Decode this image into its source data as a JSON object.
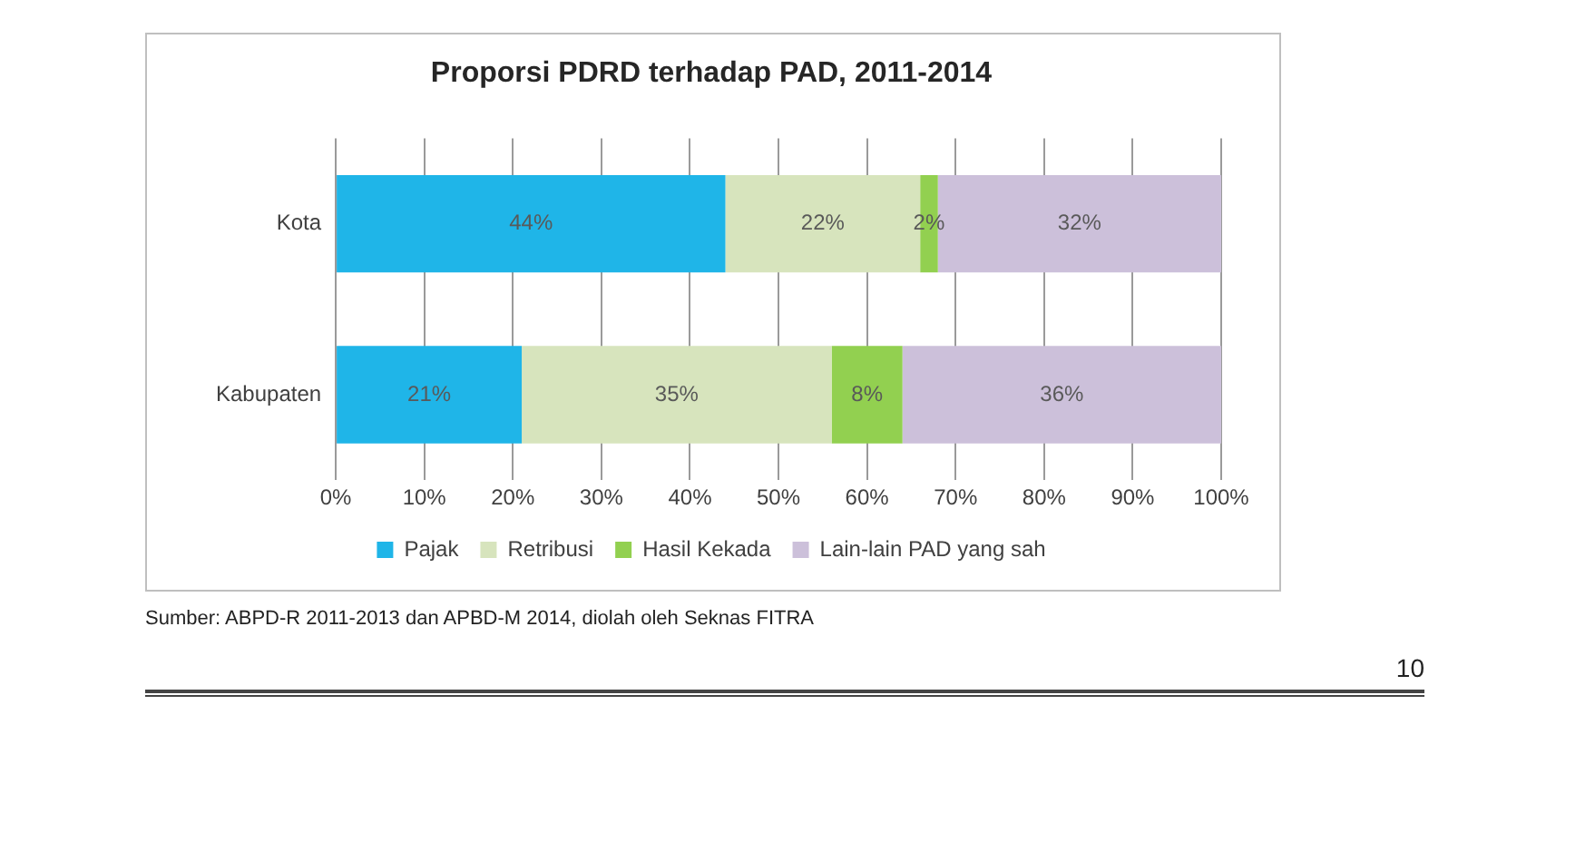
{
  "chart_data": {
    "type": "bar",
    "title": "Proporsi PDRD terhadap PAD, 2011-2014",
    "orientation": "horizontal",
    "stacked": true,
    "categories": [
      "Kota",
      "Kabupaten"
    ],
    "series": [
      {
        "name": "Pajak",
        "color": "#1fb5e8",
        "values": [
          44,
          21
        ],
        "value_labels": [
          "44%",
          "21%"
        ]
      },
      {
        "name": "Retribusi",
        "color": "#d7e4bd",
        "values": [
          22,
          35
        ],
        "value_labels": [
          "22%",
          "35%"
        ]
      },
      {
        "name": "Hasil Kekada",
        "color": "#92d050",
        "values": [
          2,
          8
        ],
        "value_labels": [
          "2%",
          "8%"
        ]
      },
      {
        "name": "Lain-lain PAD yang sah",
        "color": "#ccc0da",
        "values": [
          32,
          36
        ],
        "value_labels": [
          "32%",
          "36%"
        ]
      }
    ],
    "xlim": [
      0,
      100
    ],
    "xticks": [
      {
        "value": 0,
        "label": "0%"
      },
      {
        "value": 10,
        "label": "10%"
      },
      {
        "value": 20,
        "label": "20%"
      },
      {
        "value": 30,
        "label": "30%"
      },
      {
        "value": 40,
        "label": "40%"
      },
      {
        "value": 50,
        "label": "50%"
      },
      {
        "value": 60,
        "label": "60%"
      },
      {
        "value": 70,
        "label": "70%"
      },
      {
        "value": 80,
        "label": "80%"
      },
      {
        "value": 90,
        "label": "90%"
      },
      {
        "value": 100,
        "label": "100%"
      }
    ],
    "grid": "x",
    "legend": "bottom",
    "annotations": [
      "Sumber: ABPD-R 2011-2013 dan APBD-M 2014, diolah oleh Seknas FITRA",
      "10"
    ]
  }
}
